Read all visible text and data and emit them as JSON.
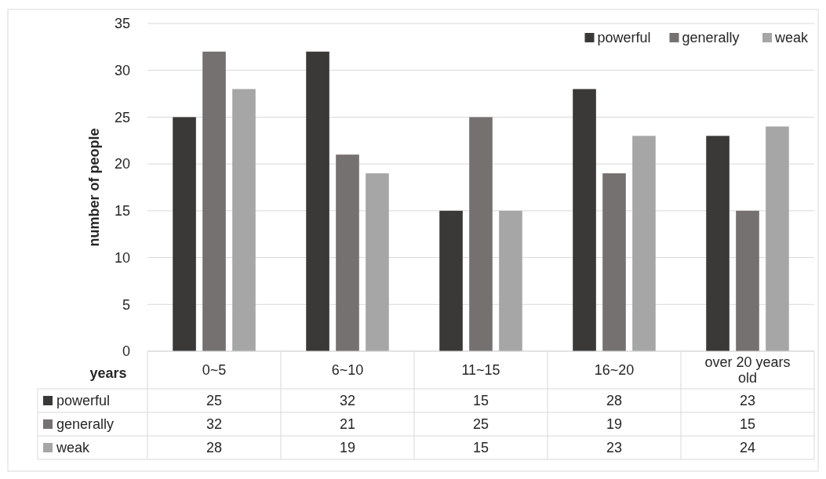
{
  "chart_data": {
    "type": "bar",
    "xlabel": "years",
    "ylabel": "number of people",
    "categories": [
      "0~5",
      "6~10",
      "11~15",
      "16~20",
      "over 20 years old"
    ],
    "series": [
      {
        "name": "powerful",
        "color": "#3a3938",
        "values": [
          25,
          32,
          15,
          28,
          23
        ]
      },
      {
        "name": "generally",
        "color": "#767171",
        "values": [
          32,
          21,
          25,
          19,
          15
        ]
      },
      {
        "name": "weak",
        "color": "#a6a6a6",
        "values": [
          28,
          19,
          15,
          23,
          24
        ]
      }
    ],
    "ylim": [
      0,
      35
    ],
    "yticks": [
      0,
      5,
      10,
      15,
      20,
      25,
      30,
      35
    ],
    "grid": "y",
    "legend": "top right",
    "data_labels": true
  }
}
